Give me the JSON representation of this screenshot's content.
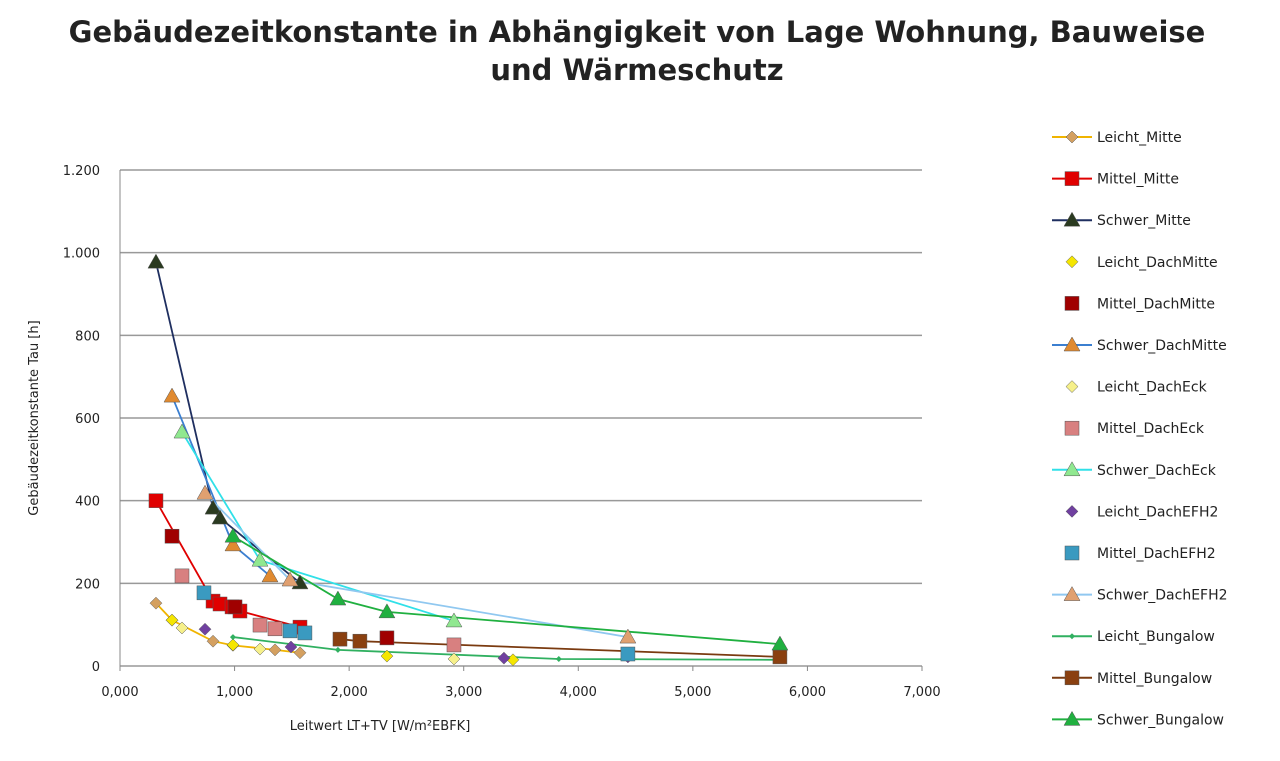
{
  "chart_data": {
    "type": "scatter",
    "title": "Gebäudezeitkonstante in Abhängigkeit von Lage Wohnung, Bauweise",
    "subtitle": "und Wärmeschutz",
    "x_label": "Leitwert LT+TV [W/m²EBFK]",
    "y_label": "Gebäudezeitkonstante Tau  [h]",
    "xlim": [
      0,
      7000
    ],
    "ylim": [
      0,
      1200
    ],
    "xticks": [
      {
        "value": 0,
        "label": "0,000"
      },
      {
        "value": 1000,
        "label": "1,000"
      },
      {
        "value": 2000,
        "label": "2,000"
      },
      {
        "value": 3000,
        "label": "3,000"
      },
      {
        "value": 4000,
        "label": "4,000"
      },
      {
        "value": 5000,
        "label": "5,000"
      },
      {
        "value": 6000,
        "label": "6,000"
      },
      {
        "value": 7000,
        "label": "7,000"
      }
    ],
    "yticks": [
      0,
      200,
      400,
      600,
      800,
      {
        "value": 1000,
        "label": "1.000"
      },
      {
        "value": 1200,
        "label": "1.200"
      }
    ],
    "grid": true,
    "legend": "right",
    "series": [
      {
        "name": "Leicht_Mitte",
        "color": "#f0b400",
        "marker_color": "#d4a060",
        "marker": "diamond",
        "line": true,
        "x": [
          314,
          454,
          812,
          986,
          1353,
          1571
        ],
        "values": [
          152,
          111,
          60,
          50,
          39,
          32
        ]
      },
      {
        "name": "Mittel_Mitte",
        "color": "#e00000",
        "marker_color": "#e00000",
        "marker": "square",
        "line": true,
        "x": [
          314,
          812,
          873,
          978,
          1047,
          1571
        ],
        "values": [
          400,
          157,
          150,
          143,
          133,
          94
        ]
      },
      {
        "name": "Schwer_Mitte",
        "color": "#1f2f60",
        "marker_color": "#2a3a20",
        "marker": "triangle",
        "line": true,
        "x": [
          314,
          812,
          873,
          1571
        ],
        "values": [
          977,
          382,
          358,
          201
        ]
      },
      {
        "name": "Leicht_DachMitte",
        "color": "#f5e600",
        "marker_color": "#f5e600",
        "marker": "diamond",
        "line": false,
        "x": [
          454,
          986,
          2330,
          3430
        ],
        "values": [
          111,
          51,
          24,
          15
        ]
      },
      {
        "name": "Mittel_DachMitte",
        "color": "#a00000",
        "marker_color": "#a00000",
        "marker": "square",
        "line": false,
        "x": [
          454,
          1004,
          2330
        ],
        "values": [
          314,
          143,
          68
        ]
      },
      {
        "name": "Schwer_DachMitte",
        "color": "#3b7fd0",
        "marker_color": "#e08a30",
        "marker": "triangle",
        "line": true,
        "x": [
          454,
          986,
          1309
        ],
        "values": [
          653,
          293,
          218
        ]
      },
      {
        "name": "Leicht_DachEck",
        "color": "#f6f08a",
        "marker_color": "#f6f08a",
        "marker": "diamond",
        "line": false,
        "x": [
          541,
          1222,
          2915
        ],
        "values": [
          92,
          41,
          17
        ]
      },
      {
        "name": "Mittel_DachEck",
        "color": "#d88080",
        "marker_color": "#d88080",
        "marker": "square",
        "line": false,
        "x": [
          541,
          1222,
          1353,
          2915
        ],
        "values": [
          218,
          99,
          90,
          51
        ]
      },
      {
        "name": "Schwer_DachEck",
        "color": "#30e0e8",
        "marker_color": "#90e890",
        "marker": "triangle",
        "line": true,
        "x": [
          541,
          1222,
          2915
        ],
        "values": [
          566,
          256,
          109
        ]
      },
      {
        "name": "Leicht_DachEFH2",
        "color": "#7040a0",
        "marker_color": "#7040a0",
        "marker": "diamond",
        "line": false,
        "x": [
          742,
          1492,
          3351,
          4433
        ],
        "values": [
          89,
          46,
          19,
          22
        ]
      },
      {
        "name": "Mittel_DachEFH2",
        "color": "#3a9ac0",
        "marker_color": "#3a9ac0",
        "marker": "square",
        "line": false,
        "x": [
          733,
          1484,
          1614,
          4433
        ],
        "values": [
          177,
          85,
          80,
          29
        ]
      },
      {
        "name": "Schwer_DachEFH2",
        "color": "#90c8f0",
        "marker_color": "#e0a070",
        "marker": "triangle",
        "line": true,
        "x": [
          742,
          1484,
          4433
        ],
        "values": [
          418,
          208,
          70
        ]
      },
      {
        "name": "Leicht_Bungalow",
        "color": "#30b060",
        "marker_color": "#30b060",
        "marker": "small",
        "line": true,
        "x": [
          986,
          1902,
          3830,
          5760
        ],
        "values": [
          70,
          39,
          17,
          15
        ]
      },
      {
        "name": "Mittel_Bungalow",
        "color": "#7a3a10",
        "marker_color": "#8a4010",
        "marker": "square",
        "line": true,
        "x": [
          1920,
          2094,
          5760
        ],
        "values": [
          65,
          60,
          22
        ]
      },
      {
        "name": "Schwer_Bungalow",
        "color": "#20b040",
        "marker_color": "#20b040",
        "marker": "triangle",
        "line": true,
        "x": [
          986,
          1902,
          2330,
          5760
        ],
        "values": [
          314,
          162,
          131,
          53
        ]
      }
    ]
  }
}
